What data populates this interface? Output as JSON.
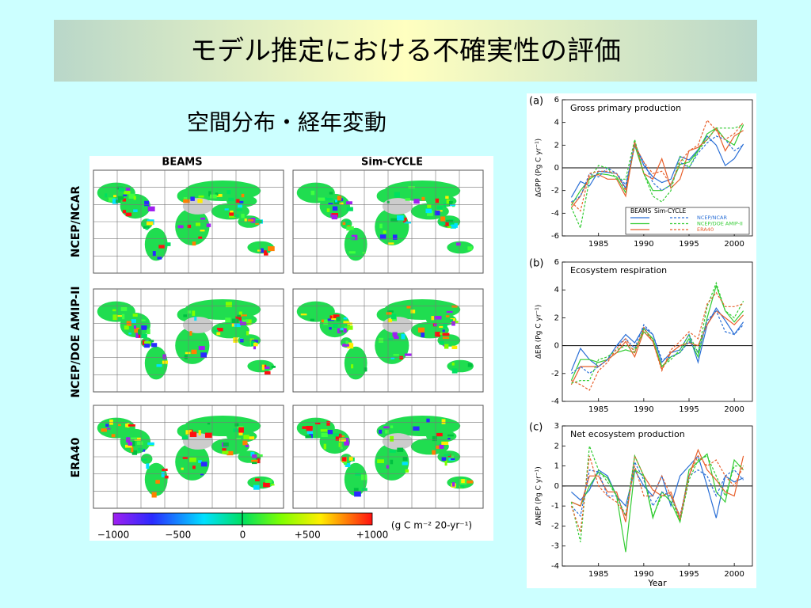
{
  "title": "モデル推定における不確実性の評価",
  "subtitle": "空間分布・経年変動",
  "map_figure": {
    "columns": [
      "BEAMS",
      "Sim-CYCLE"
    ],
    "rows": [
      "NCEP/NCAR",
      "NCEP/DOE AMIP-II",
      "ERA40"
    ],
    "colorbar_ticks": [
      "−1000",
      "−500",
      "0",
      "+500",
      "+1000"
    ],
    "colorbar_unit": "(g C m⁻² 20-yr⁻¹)"
  },
  "chart_data": [
    {
      "type": "line",
      "panel": "(a)",
      "title": "Gross primary production",
      "ylabel": "ΔGPP (Pg C yr⁻¹)",
      "x": [
        1982,
        1983,
        1984,
        1985,
        1986,
        1987,
        1988,
        1989,
        1990,
        1991,
        1992,
        1993,
        1994,
        1995,
        1996,
        1997,
        1998,
        1999,
        2000,
        2001
      ],
      "xlim": [
        1981,
        2002
      ],
      "xticks": [
        1985,
        1990,
        1995,
        2000
      ],
      "ylim": [
        -6,
        6
      ],
      "yticks": [
        -6,
        -4,
        -2,
        0,
        2,
        4,
        6
      ],
      "zero_line": true,
      "legend": {
        "headers": [
          "BEAMS",
          "Sim-CYCLE"
        ],
        "labels": [
          "NCEP/NCAR",
          "NCEP/DOE AMIP-II",
          "ERA40"
        ]
      },
      "series": [
        {
          "color": "#2a6fd6",
          "dash": false,
          "values": [
            -2.6,
            -1.2,
            -1.6,
            -0.3,
            -0.4,
            -0.5,
            -1.8,
            2.2,
            0.2,
            -0.8,
            -1.3,
            -1.0,
            1.0,
            0.7,
            1.6,
            2.8,
            2.0,
            0.2,
            0.8,
            2.1
          ]
        },
        {
          "color": "#33cc33",
          "dash": false,
          "values": [
            -3.3,
            -2.0,
            -1.0,
            -0.5,
            -0.6,
            -0.8,
            -2.2,
            2.0,
            -0.5,
            -2.0,
            -2.0,
            -1.5,
            0.3,
            0.5,
            1.5,
            3.0,
            3.5,
            2.5,
            2.0,
            3.8
          ]
        },
        {
          "color": "#e8602c",
          "dash": false,
          "values": [
            -3.5,
            -2.5,
            -0.8,
            -0.6,
            -1.0,
            -1.0,
            -2.5,
            2.3,
            -0.5,
            -1.0,
            0.8,
            -1.8,
            -1.0,
            1.5,
            1.8,
            2.5,
            3.5,
            1.5,
            2.8,
            3.3
          ]
        },
        {
          "color": "#2a6fd6",
          "dash": true,
          "values": [
            -3.0,
            -2.5,
            -0.5,
            -0.8,
            0.0,
            -0.5,
            -1.5,
            2.0,
            0.5,
            -1.3,
            -2.0,
            -1.5,
            0.5,
            0.0,
            1.3,
            2.2,
            2.8,
            2.5,
            1.5,
            2.0
          ]
        },
        {
          "color": "#33cc33",
          "dash": true,
          "values": [
            -3.5,
            -5.3,
            -1.0,
            0.2,
            0.0,
            -1.0,
            -1.0,
            2.5,
            -0.5,
            -2.5,
            -3.0,
            -2.0,
            1.0,
            0.0,
            1.5,
            2.5,
            3.5,
            3.5,
            3.5,
            3.8
          ]
        },
        {
          "color": "#e8602c",
          "dash": true,
          "values": [
            -3.0,
            -3.8,
            -0.5,
            -0.3,
            -0.3,
            -0.5,
            -2.0,
            2.0,
            0.5,
            -0.5,
            -0.3,
            -1.5,
            0.5,
            1.5,
            2.0,
            4.2,
            3.3,
            2.5,
            3.0,
            4.0
          ]
        }
      ]
    },
    {
      "type": "line",
      "panel": "(b)",
      "title": "Ecosystem respiration",
      "ylabel": "ΔER (Pg C yr⁻¹)",
      "x": [
        1982,
        1983,
        1984,
        1985,
        1986,
        1987,
        1988,
        1989,
        1990,
        1991,
        1992,
        1993,
        1994,
        1995,
        1996,
        1997,
        1998,
        1999,
        2000,
        2001
      ],
      "xlim": [
        1981,
        2002
      ],
      "xticks": [
        1985,
        1990,
        1995,
        2000
      ],
      "ylim": [
        -4,
        6
      ],
      "yticks": [
        -4,
        -2,
        0,
        2,
        4,
        6
      ],
      "zero_line": true,
      "series": [
        {
          "color": "#2a6fd6",
          "dash": false,
          "values": [
            -1.8,
            -0.2,
            -1.0,
            -1.5,
            -1.0,
            0.0,
            0.8,
            0.2,
            1.3,
            0.8,
            -1.2,
            -0.5,
            -0.3,
            0.8,
            -1.2,
            1.5,
            2.7,
            1.8,
            0.8,
            1.7
          ]
        },
        {
          "color": "#33cc33",
          "dash": false,
          "values": [
            -2.5,
            -1.0,
            -1.0,
            -1.2,
            -1.0,
            -0.5,
            -0.3,
            -0.5,
            1.2,
            0.5,
            -1.5,
            -0.8,
            -0.5,
            0.5,
            -0.8,
            2.0,
            4.3,
            2.5,
            1.7,
            2.5
          ]
        },
        {
          "color": "#e8602c",
          "dash": false,
          "values": [
            -2.8,
            -1.5,
            -1.5,
            -1.5,
            -1.0,
            -0.5,
            0.3,
            -0.8,
            1.0,
            0.3,
            -1.7,
            -0.5,
            0.0,
            0.2,
            0.0,
            1.5,
            2.5,
            2.0,
            1.5,
            2.2
          ]
        },
        {
          "color": "#2a6fd6",
          "dash": true,
          "values": [
            -2.0,
            -1.5,
            -2.0,
            -1.5,
            -1.0,
            0.0,
            0.5,
            -0.2,
            1.5,
            0.8,
            -1.0,
            -0.8,
            -0.5,
            0.3,
            -0.5,
            1.8,
            2.5,
            1.0,
            0.8,
            1.5
          ]
        },
        {
          "color": "#33cc33",
          "dash": true,
          "values": [
            -2.7,
            -2.5,
            -2.5,
            -1.0,
            -0.8,
            -0.3,
            0.0,
            -0.3,
            1.0,
            0.5,
            -1.5,
            -1.0,
            -0.3,
            0.8,
            -0.5,
            2.8,
            4.5,
            2.5,
            2.0,
            3.2
          ]
        },
        {
          "color": "#e8602c",
          "dash": true,
          "values": [
            -2.5,
            -2.8,
            -3.2,
            -1.8,
            -1.2,
            -0.2,
            0.5,
            -0.5,
            1.3,
            0.3,
            -1.8,
            -0.3,
            0.3,
            1.0,
            0.5,
            3.0,
            3.8,
            2.8,
            2.8,
            3.0
          ]
        }
      ]
    },
    {
      "type": "line",
      "panel": "(c)",
      "title": "Net ecosystem production",
      "ylabel": "ΔNEP (Pg C yr⁻¹)",
      "xlabel": "Year",
      "x": [
        1982,
        1983,
        1984,
        1985,
        1986,
        1987,
        1988,
        1989,
        1990,
        1991,
        1992,
        1993,
        1994,
        1995,
        1996,
        1997,
        1998,
        1999,
        2000,
        2001
      ],
      "xlim": [
        1981,
        2002
      ],
      "xticks": [
        1985,
        1990,
        1995,
        2000
      ],
      "ylim": [
        -4,
        3
      ],
      "yticks": [
        -4,
        -3,
        -2,
        -1,
        0,
        1,
        2,
        3
      ],
      "zero_line": true,
      "series": [
        {
          "color": "#2a6fd6",
          "dash": false,
          "values": [
            -0.3,
            -0.7,
            -0.2,
            0.8,
            0.5,
            -0.5,
            -1.0,
            0.8,
            0.0,
            -0.5,
            0.5,
            -1.0,
            0.5,
            1.0,
            1.5,
            0.0,
            -1.6,
            0.5,
            0.2,
            0.4
          ]
        },
        {
          "color": "#33cc33",
          "dash": false,
          "values": [
            -0.8,
            -1.0,
            0.0,
            0.7,
            0.4,
            -0.5,
            -3.3,
            0.8,
            0.5,
            -1.6,
            -0.3,
            -0.8,
            -1.8,
            0.8,
            1.2,
            1.6,
            -0.3,
            -0.8,
            1.3,
            0.8
          ]
        },
        {
          "color": "#e8602c",
          "dash": false,
          "values": [
            -0.8,
            -1.0,
            0.5,
            0.5,
            -0.3,
            -0.3,
            -1.8,
            1.5,
            0.5,
            -0.2,
            -0.5,
            -0.3,
            -1.7,
            0.5,
            1.8,
            0.8,
            0.3,
            -0.3,
            -0.5,
            1.5
          ]
        },
        {
          "color": "#2a6fd6",
          "dash": true,
          "values": [
            -1.0,
            -1.5,
            0.8,
            0.7,
            -0.5,
            -0.5,
            -1.5,
            1.2,
            0.3,
            -1.0,
            -0.3,
            -0.5,
            -1.5,
            0.5,
            0.8,
            0.5,
            -0.5,
            0.5,
            0.8,
            0.3
          ]
        },
        {
          "color": "#33cc33",
          "dash": true,
          "values": [
            -0.8,
            -2.8,
            2.0,
            0.8,
            0.2,
            -0.5,
            -1.5,
            1.5,
            0.5,
            -1.5,
            -0.5,
            -0.5,
            -1.8,
            0.3,
            1.3,
            1.5,
            0.5,
            -0.5,
            1.0,
            1.0
          ]
        },
        {
          "color": "#e8602c",
          "dash": true,
          "values": [
            -1.0,
            -2.3,
            1.5,
            0.0,
            -0.5,
            -0.8,
            -1.5,
            1.0,
            -0.5,
            -0.5,
            0.5,
            -0.5,
            -1.5,
            0.5,
            1.5,
            1.0,
            1.3,
            0.5,
            0.0,
            1.0
          ]
        }
      ]
    }
  ]
}
